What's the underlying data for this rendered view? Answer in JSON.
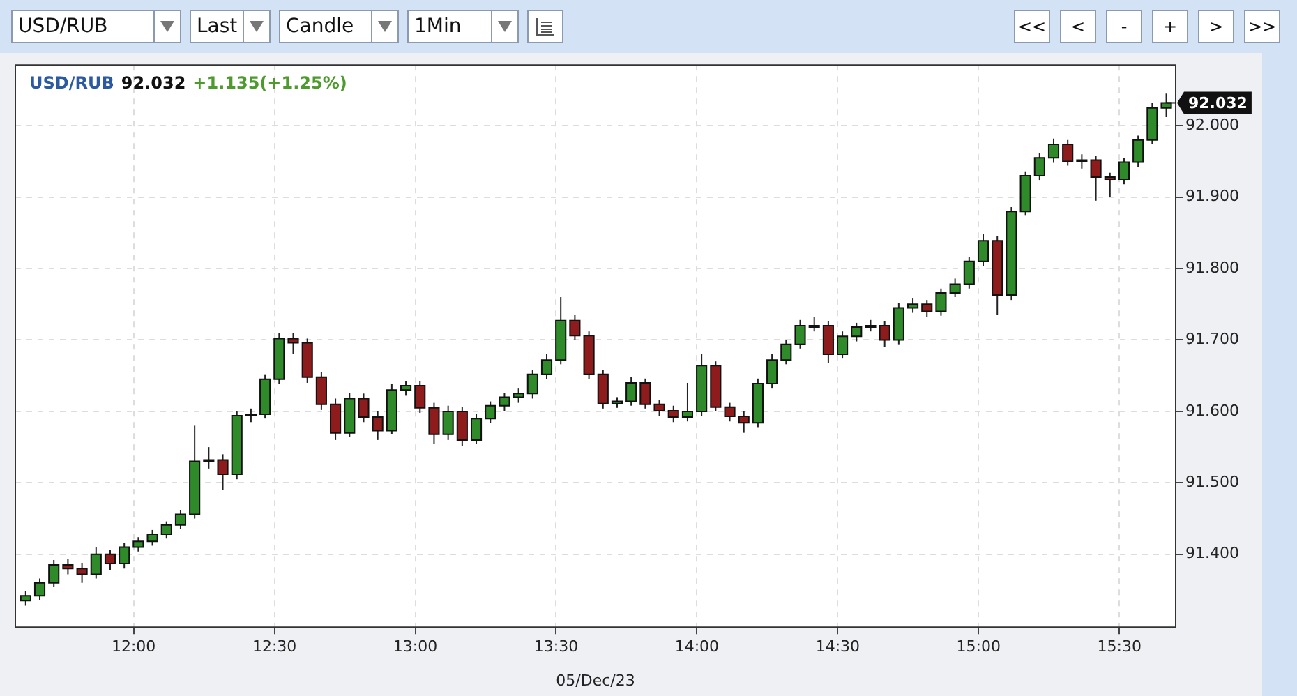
{
  "chart_data": {
    "type": "candlestick",
    "title": "USD/RUB",
    "xlabel": "05/Dec/23",
    "annotations": [
      "USD/RUB",
      "Last",
      "Candle",
      "1Min",
      "<<",
      "<",
      "-",
      "+",
      ">",
      ">>",
      "92.032",
      "+1.135(+1.25%)",
      {
        "text": "92.032",
        "x": 15.6667,
        "y": 92.032
      }
    ],
    "x": [
      11.6167,
      11.6667,
      11.7167,
      11.7667,
      11.8167,
      11.8667,
      11.9167,
      11.9667,
      12.0167,
      12.0667,
      12.1167,
      12.1667,
      12.2167,
      12.2667,
      12.3167,
      12.3667,
      12.4167,
      12.4667,
      12.5167,
      12.5667,
      12.6167,
      12.6667,
      12.7167,
      12.7667,
      12.8167,
      12.8667,
      12.9167,
      12.9667,
      13.0167,
      13.0667,
      13.1167,
      13.1667,
      13.2167,
      13.2667,
      13.3167,
      13.3667,
      13.4167,
      13.4667,
      13.5167,
      13.5667,
      13.6167,
      13.6667,
      13.7167,
      13.7667,
      13.8167,
      13.8667,
      13.9167,
      13.9667,
      14.0167,
      14.0667,
      14.1167,
      14.1667,
      14.2167,
      14.2667,
      14.3167,
      14.3667,
      14.4167,
      14.4667,
      14.5167,
      14.5667,
      14.6167,
      14.6667,
      14.7167,
      14.7667,
      14.8167,
      14.8667,
      14.9167,
      14.9667,
      15.0167,
      15.0667,
      15.1167,
      15.1667,
      15.2167,
      15.2667,
      15.3167,
      15.3667,
      15.4167,
      15.4667,
      15.5167,
      15.5667,
      15.6167,
      15.6667
    ],
    "ohlc": [
      [
        91.335,
        91.348,
        91.328,
        91.342
      ],
      [
        91.342,
        91.366,
        91.336,
        91.36
      ],
      [
        91.36,
        91.392,
        91.354,
        91.385
      ],
      [
        91.385,
        91.394,
        91.372,
        91.38
      ],
      [
        91.38,
        91.388,
        91.36,
        91.372
      ],
      [
        91.372,
        91.41,
        91.366,
        91.4
      ],
      [
        91.4,
        91.406,
        91.378,
        91.387
      ],
      [
        91.387,
        91.416,
        91.38,
        91.41
      ],
      [
        91.41,
        91.424,
        91.404,
        91.418
      ],
      [
        91.418,
        91.434,
        91.412,
        91.428
      ],
      [
        91.428,
        91.446,
        91.422,
        91.441
      ],
      [
        91.441,
        91.462,
        91.435,
        91.456
      ],
      [
        91.456,
        91.58,
        91.45,
        91.53
      ],
      [
        91.53,
        91.55,
        91.52,
        91.532
      ],
      [
        91.532,
        91.54,
        91.49,
        91.512
      ],
      [
        91.512,
        91.6,
        91.505,
        91.594
      ],
      [
        91.594,
        91.604,
        91.585,
        91.596
      ],
      [
        91.596,
        91.652,
        91.59,
        91.645
      ],
      [
        91.645,
        91.71,
        91.638,
        91.702
      ],
      [
        91.702,
        91.71,
        91.68,
        91.696
      ],
      [
        91.696,
        91.702,
        91.64,
        91.648
      ],
      [
        91.648,
        91.655,
        91.602,
        91.61
      ],
      [
        91.61,
        91.618,
        91.56,
        91.57
      ],
      [
        91.57,
        91.626,
        91.564,
        91.618
      ],
      [
        91.618,
        91.625,
        91.585,
        91.592
      ],
      [
        91.592,
        91.6,
        91.56,
        91.573
      ],
      [
        91.573,
        91.638,
        91.568,
        91.63
      ],
      [
        91.63,
        91.642,
        91.622,
        91.636
      ],
      [
        91.636,
        91.642,
        91.598,
        91.605
      ],
      [
        91.605,
        91.612,
        91.555,
        91.568
      ],
      [
        91.568,
        91.608,
        91.56,
        91.6
      ],
      [
        91.6,
        91.606,
        91.552,
        91.56
      ],
      [
        91.56,
        91.596,
        91.554,
        91.59
      ],
      [
        91.59,
        91.614,
        91.584,
        91.608
      ],
      [
        91.608,
        91.626,
        91.6,
        91.62
      ],
      [
        91.62,
        91.632,
        91.612,
        91.625
      ],
      [
        91.625,
        91.658,
        91.618,
        91.652
      ],
      [
        91.652,
        91.68,
        91.645,
        91.672
      ],
      [
        91.672,
        91.76,
        91.666,
        91.727
      ],
      [
        91.727,
        91.735,
        91.7,
        91.706
      ],
      [
        91.706,
        91.712,
        91.645,
        91.652
      ],
      [
        91.652,
        91.658,
        91.604,
        91.611
      ],
      [
        91.611,
        91.62,
        91.605,
        91.614
      ],
      [
        91.614,
        91.648,
        91.608,
        91.64
      ],
      [
        91.64,
        91.646,
        91.604,
        91.61
      ],
      [
        91.61,
        91.616,
        91.594,
        91.601
      ],
      [
        91.601,
        91.608,
        91.585,
        91.592
      ],
      [
        91.592,
        91.64,
        91.586,
        91.6
      ],
      [
        91.6,
        91.68,
        91.594,
        91.664
      ],
      [
        91.664,
        91.67,
        91.6,
        91.606
      ],
      [
        91.606,
        91.612,
        91.586,
        91.593
      ],
      [
        91.593,
        91.6,
        91.57,
        91.584
      ],
      [
        91.584,
        91.646,
        91.578,
        91.639
      ],
      [
        91.639,
        91.68,
        91.632,
        91.672
      ],
      [
        91.672,
        91.7,
        91.666,
        91.694
      ],
      [
        91.694,
        91.728,
        91.688,
        91.72
      ],
      [
        91.72,
        91.732,
        91.712,
        91.72
      ],
      [
        91.72,
        91.726,
        91.668,
        91.68
      ],
      [
        91.68,
        91.712,
        91.674,
        91.705
      ],
      [
        91.705,
        91.724,
        91.698,
        91.718
      ],
      [
        91.718,
        91.728,
        91.712,
        91.72
      ],
      [
        91.72,
        91.726,
        91.69,
        91.7
      ],
      [
        91.7,
        91.752,
        91.694,
        91.745
      ],
      [
        91.745,
        91.758,
        91.738,
        91.75
      ],
      [
        91.75,
        91.756,
        91.732,
        91.74
      ],
      [
        91.74,
        91.772,
        91.734,
        91.766
      ],
      [
        91.766,
        91.786,
        91.76,
        91.778
      ],
      [
        91.778,
        91.816,
        91.772,
        91.81
      ],
      [
        91.81,
        91.848,
        91.804,
        91.839
      ],
      [
        91.839,
        91.846,
        91.735,
        91.763
      ],
      [
        91.763,
        91.886,
        91.756,
        91.88
      ],
      [
        91.88,
        91.936,
        91.874,
        91.93
      ],
      [
        91.93,
        91.962,
        91.924,
        91.955
      ],
      [
        91.955,
        91.982,
        91.948,
        91.974
      ],
      [
        91.974,
        91.98,
        91.944,
        91.95
      ],
      [
        91.95,
        91.96,
        91.94,
        91.952
      ],
      [
        91.952,
        91.958,
        91.895,
        91.928
      ],
      [
        91.928,
        91.934,
        91.9,
        91.925
      ],
      [
        91.925,
        91.955,
        91.918,
        91.949
      ],
      [
        91.949,
        91.986,
        91.942,
        91.98
      ],
      [
        91.98,
        92.032,
        91.974,
        92.025
      ],
      [
        92.025,
        92.045,
        92.012,
        92.032
      ]
    ],
    "xlim": [
      11.58,
      15.7
    ],
    "xticks": [
      {
        "value": 12,
        "label": "12:00"
      },
      {
        "value": 12.5,
        "label": "12:30"
      },
      {
        "value": 13,
        "label": "13:00"
      },
      {
        "value": 13.5,
        "label": "13:30"
      },
      {
        "value": 14,
        "label": "14:00"
      },
      {
        "value": 14.5,
        "label": "14:30"
      },
      {
        "value": 15,
        "label": "15:00"
      },
      {
        "value": 15.5,
        "label": "15:30"
      }
    ],
    "ylim": [
      91.298,
      92.085
    ],
    "yticks": [
      {
        "value": 91.4,
        "label": "91.400"
      },
      {
        "value": 91.5,
        "label": "91.500"
      },
      {
        "value": 91.6,
        "label": "91.600"
      },
      {
        "value": 91.7,
        "label": "91.700"
      },
      {
        "value": 91.8,
        "label": "91.800"
      },
      {
        "value": 91.9,
        "label": "91.900"
      },
      {
        "value": 92.0,
        "label": "92.000"
      }
    ],
    "grid": true,
    "legend": false
  }
}
